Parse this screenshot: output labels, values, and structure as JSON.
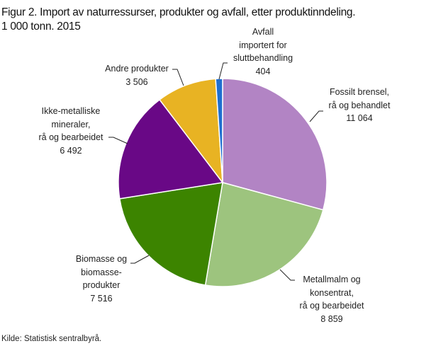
{
  "chart_data": {
    "type": "pie",
    "title": "Figur 2. Import av naturressurser, produkter og avfall, etter produktinndeling.",
    "subtitle": "1 000 tonn. 2015",
    "start_angle": "12 o'clock, clockwise",
    "slices": [
      {
        "label_lines": [
          "Fossilt brensel,",
          "rå og behandlet"
        ],
        "value": 11064,
        "value_label": "11 064",
        "color": "#b284c4"
      },
      {
        "label_lines": [
          "Metallmalm og",
          "konsentrat,",
          "rå og bearbeidet"
        ],
        "value": 8859,
        "value_label": "8 859",
        "color": "#9dc47e"
      },
      {
        "label_lines": [
          "Biomasse  og",
          "biomasse-",
          "produkter"
        ],
        "value": 7516,
        "value_label": "7 516",
        "color": "#3c8400"
      },
      {
        "label_lines": [
          "Ikke-metalliske",
          "mineraler,",
          "rå og bearbeidet"
        ],
        "value": 6492,
        "value_label": "6 492",
        "color": "#690886"
      },
      {
        "label_lines": [
          "Andre produkter"
        ],
        "value": 3506,
        "value_label": "3 506",
        "color": "#e8b323"
      },
      {
        "label_lines": [
          "Avfall",
          "importert for",
          "sluttbehandling"
        ],
        "value": 404,
        "value_label": "404",
        "color": "#1e6fd0"
      }
    ],
    "source": "Kilde: Statistisk sentralbyrå."
  }
}
